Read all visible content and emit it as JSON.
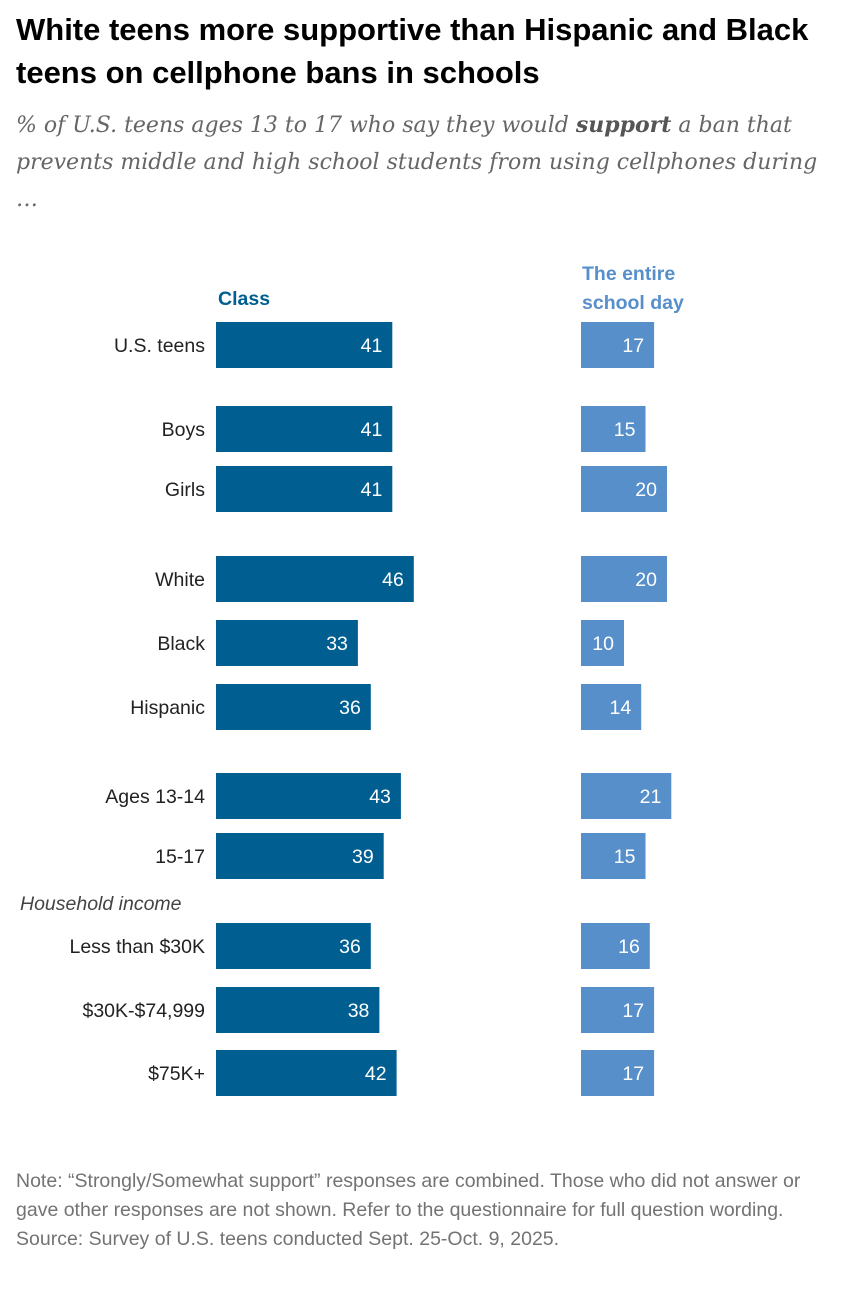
{
  "title": "White teens more supportive than Hispanic and Black teens on cellphone bans in schools",
  "subtitle": {
    "before": "% of U.S. teens ages 13 to 17 who say they would ",
    "emphasis": "support",
    "after": " a ban that prevents middle and high school students from using cellphones during …"
  },
  "note": "Note: “Strongly/Somewhat support” responses are combined. Those who did not answer or gave other responses are not shown. Refer to the questionnaire for full question wording.",
  "source": "Source: Survey of U.S. teens conducted Sept. 25-Oct. 9, 2025.",
  "chart_data": {
    "type": "bar",
    "orientation": "horizontal",
    "title": "White teens more supportive than Hispanic and Black teens on cellphone bans in schools",
    "group_label": "Household income",
    "categories": [
      "U.S. teens",
      "Boys",
      "Girls",
      "White",
      "Black",
      "Hispanic",
      "Ages 13-14",
      "15-17",
      "Less than $30K",
      "$30K-$74,999",
      "$75K+"
    ],
    "series": [
      {
        "name": "Class",
        "color": "#005e91",
        "values": [
          41,
          41,
          41,
          46,
          33,
          36,
          43,
          39,
          36,
          38,
          42
        ]
      },
      {
        "name": "The entire school day",
        "color": "#578fcb",
        "values": [
          17,
          15,
          20,
          20,
          10,
          14,
          21,
          15,
          16,
          17,
          17
        ]
      }
    ]
  }
}
